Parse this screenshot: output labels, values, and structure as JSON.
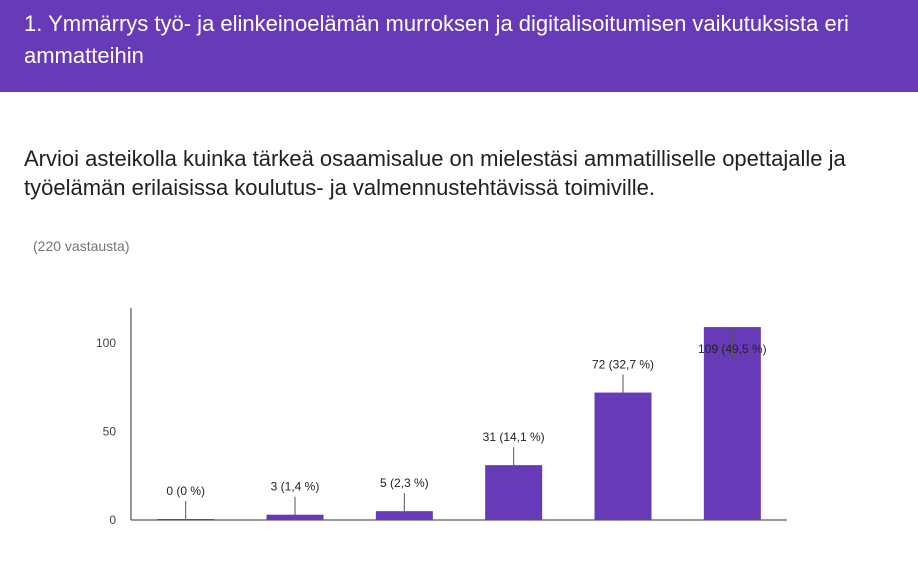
{
  "section": {
    "title": "1. Ymmärrys työ- ja elinkeinoelämän murroksen ja digitalisoitumisen vaikutuksista eri ammatteihin"
  },
  "question": {
    "text": "Arvioi asteikolla kuinka tärkeä osaamisalue on mielestäsi ammatilliselle opettajalle ja työelämän erilaisissa koulutus- ja valmennustehtävissä toimiville.",
    "response_count": "(220 vastausta)"
  },
  "chart_data": {
    "type": "bar",
    "categories": [
      "",
      "",
      "",
      "",
      "",
      ""
    ],
    "values": [
      0,
      3,
      5,
      31,
      72,
      109
    ],
    "data_labels": [
      "0 (0 %)",
      "3 (1,4 %)",
      "5 (2,3 %)",
      "31 (14,1 %)",
      "72 (32,7 %)",
      "109 (49,5 %)"
    ],
    "yticks": [
      0,
      50,
      100
    ],
    "ylim": [
      0,
      120
    ],
    "grid": false,
    "legend": "none",
    "bar_color": "#673ab7"
  }
}
